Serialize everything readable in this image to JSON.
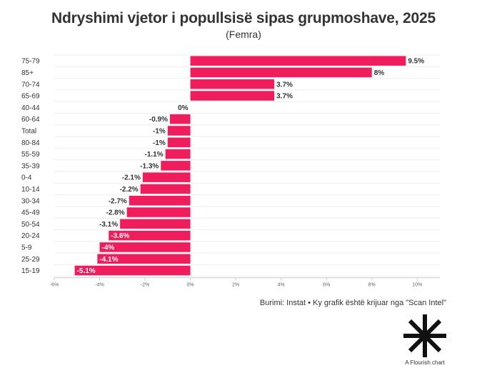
{
  "chart_data": {
    "type": "bar",
    "orientation": "horizontal",
    "title": "Ndryshimi vjetor i popullsisë sipas grupmoshave, 2025",
    "subtitle": "(Femra)",
    "categories": [
      "75-79",
      "85+",
      "70-74",
      "65-69",
      "40-44",
      "60-64",
      "Total",
      "80-84",
      "55-59",
      "35-39",
      "0-4",
      "10-14",
      "30-34",
      "45-49",
      "50-54",
      "20-24",
      "5-9",
      "25-29",
      "15-19"
    ],
    "values": [
      9.5,
      8,
      3.7,
      3.7,
      0,
      -0.9,
      -1,
      -1,
      -1.1,
      -1.3,
      -2.1,
      -2.2,
      -2.7,
      -2.8,
      -3.1,
      -3.6,
      -4,
      -4.1,
      -5.1
    ],
    "value_labels": [
      "9.5%",
      "8%",
      "3.7%",
      "3.7%",
      "0%",
      "-0.9%",
      "-1%",
      "-1%",
      "-1.1%",
      "-1.3%",
      "-2.1%",
      "-2.2%",
      "-2.7%",
      "-2.8%",
      "-3.1%",
      "-3.6%",
      "-4%",
      "-4.1%",
      "-5.1%"
    ],
    "xlim": [
      -6,
      11
    ],
    "x_ticks": [
      -6,
      -4,
      -2,
      0,
      2,
      4,
      6,
      8,
      10
    ],
    "x_tick_labels": [
      "-6%",
      "-4%",
      "-2%",
      "0%",
      "2%",
      "4%",
      "6%",
      "8%",
      "10%"
    ],
    "bar_color": "#ef1d5c",
    "grid": true
  },
  "footer": {
    "source": "Burimi: Instat • Ky grafik është krijuar nga \"Scan Intel\"",
    "logo_label": "A Flourish chart"
  }
}
